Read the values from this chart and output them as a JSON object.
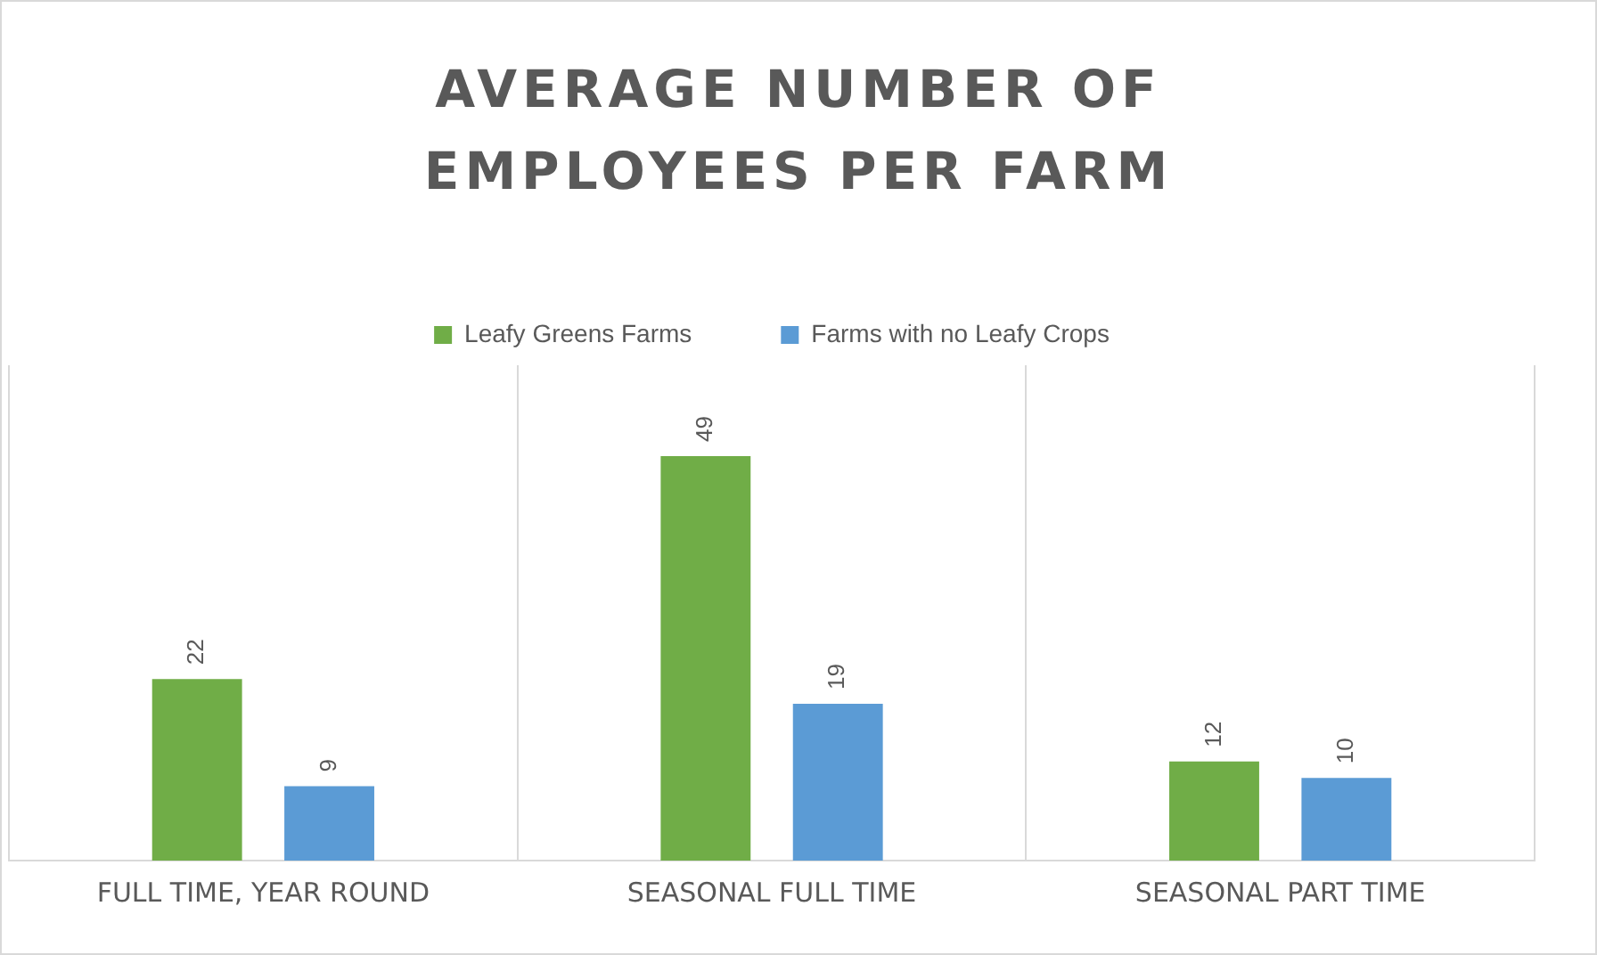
{
  "chart_data": {
    "type": "bar",
    "title": "AVERAGE NUMBER OF EMPLOYEES PER FARM",
    "categories": [
      "FULL TIME, YEAR ROUND",
      "SEASONAL FULL TIME",
      "SEASONAL PART TIME"
    ],
    "series": [
      {
        "name": "Leafy Greens Farms",
        "color": "#70ad47",
        "values": [
          22,
          49,
          12
        ]
      },
      {
        "name": "Farms with no Leafy Crops",
        "color": "#5b9bd5",
        "values": [
          9,
          19,
          10
        ]
      }
    ],
    "ylim": [
      0,
      60
    ],
    "tick_labels": "x",
    "grid": "x",
    "legend": "top",
    "data_labels": true
  }
}
